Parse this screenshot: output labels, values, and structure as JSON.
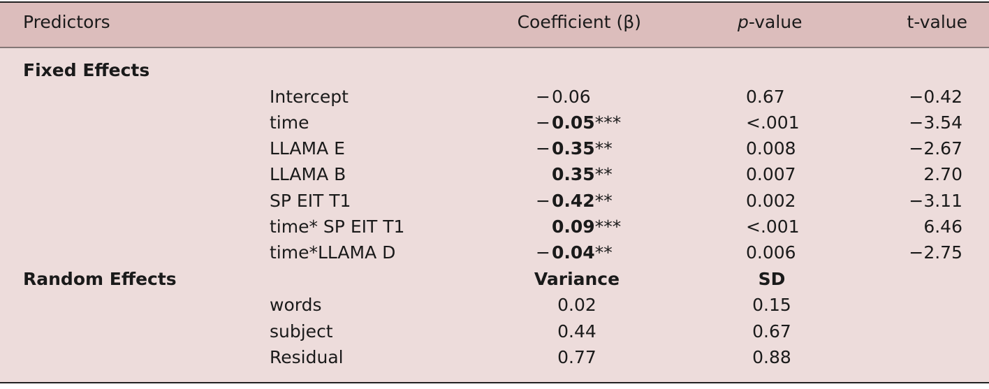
{
  "header": {
    "predictors": "Predictors",
    "coefficient": "Coefficient (β)",
    "p_italic": "p",
    "p_rest": "-value",
    "t_value": "t-value"
  },
  "fixed": {
    "title": "Fixed Effects",
    "rows": [
      {
        "name": "Intercept",
        "sign": "−",
        "number": "0.06",
        "bold": false,
        "p": "0.67",
        "t": "−0.42"
      },
      {
        "name": "time",
        "sign": "−",
        "number": "0.05",
        "stars": "***",
        "bold": true,
        "p": "<.001",
        "t": "−3.54"
      },
      {
        "name": "LLAMA E",
        "sign": "−",
        "number": "0.35",
        "stars": "**",
        "bold": true,
        "p": "0.008",
        "t": "−2.67"
      },
      {
        "name": "LLAMA B",
        "number": "0.35",
        "stars": "**",
        "bold": true,
        "p": "0.007",
        "t": "2.70"
      },
      {
        "name": "SP EIT T1",
        "sign": "−",
        "number": "0.42",
        "stars": "**",
        "bold": true,
        "p": "0.002",
        "t": "−3.11"
      },
      {
        "name": "time* SP EIT T1",
        "number": "0.09",
        "stars": "***",
        "bold": true,
        "p": "<.001",
        "t": "6.46"
      },
      {
        "name": "time*LLAMA D",
        "sign": "−",
        "number": "0.04",
        "stars": "**",
        "bold": true,
        "p": "0.006",
        "t": "−2.75"
      }
    ]
  },
  "random": {
    "title": "Random Effects",
    "variance_header": "Variance",
    "sd_header": "SD",
    "rows": [
      {
        "name": "words",
        "variance": "0.02",
        "sd": "0.15"
      },
      {
        "name": "subject",
        "variance": "0.44",
        "sd": "0.67"
      },
      {
        "name": "Residual",
        "variance": "0.77",
        "sd": "0.88"
      }
    ]
  }
}
